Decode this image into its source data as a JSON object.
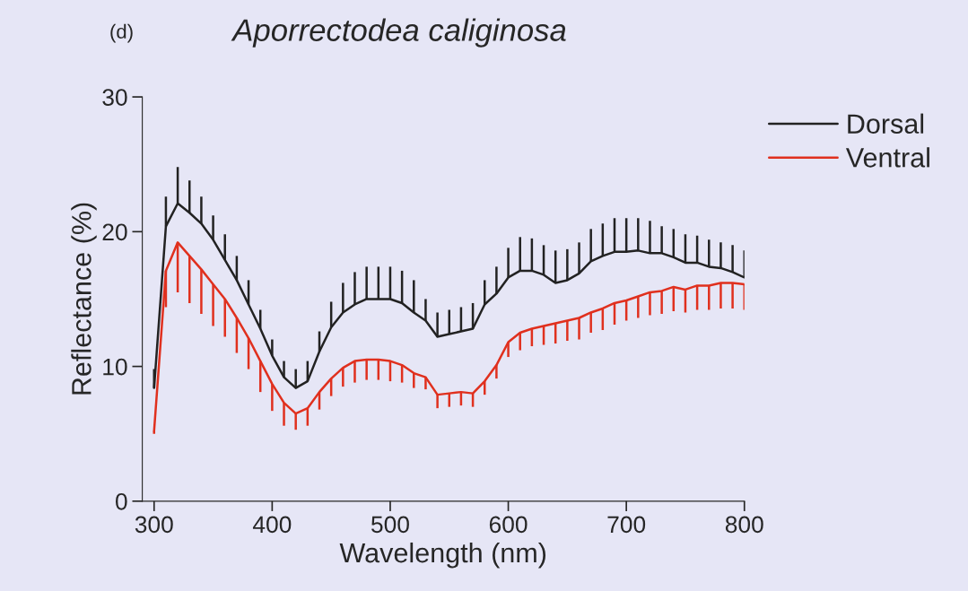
{
  "chart_data": {
    "type": "line",
    "title": "Aporrectodea caliginosa",
    "xlabel": "Wavelength (nm)",
    "ylabel": "Reflectance (%)",
    "annotations": [
      "(d)"
    ],
    "x": [
      300,
      310,
      320,
      330,
      340,
      350,
      360,
      370,
      380,
      390,
      400,
      410,
      420,
      430,
      440,
      450,
      460,
      470,
      480,
      490,
      500,
      510,
      520,
      530,
      540,
      550,
      560,
      570,
      580,
      590,
      600,
      610,
      620,
      630,
      640,
      650,
      660,
      670,
      680,
      690,
      700,
      710,
      720,
      730,
      740,
      750,
      760,
      770,
      780,
      790,
      800
    ],
    "series": [
      {
        "name": "Dorsal",
        "color": "#222222",
        "values": [
          8.4,
          20.4,
          22.1,
          21.4,
          20.6,
          19.4,
          17.9,
          16.4,
          14.6,
          12.8,
          10.8,
          9.2,
          8.4,
          8.9,
          11.1,
          12.9,
          14.0,
          14.6,
          15.0,
          15.0,
          15.0,
          14.7,
          14.0,
          13.4,
          12.2,
          12.4,
          12.6,
          12.8,
          14.6,
          15.4,
          16.6,
          17.1,
          17.1,
          16.8,
          16.2,
          16.4,
          16.9,
          17.8,
          18.2,
          18.5,
          18.5,
          18.6,
          18.4,
          18.4,
          18.1,
          17.7,
          17.7,
          17.4,
          17.3,
          17.0,
          16.6
        ],
        "errors": [
          [
            8.4,
            9.8
          ],
          [
            20.4,
            22.6
          ],
          [
            22.1,
            24.8
          ],
          [
            21.4,
            23.8
          ],
          [
            20.6,
            22.6
          ],
          [
            19.4,
            21.2
          ],
          [
            17.9,
            19.8
          ],
          [
            16.4,
            18.2
          ],
          [
            14.6,
            16.4
          ],
          [
            12.8,
            14.2
          ],
          [
            10.8,
            12.0
          ],
          [
            9.2,
            10.4
          ],
          [
            8.4,
            9.8
          ],
          [
            8.9,
            10.4
          ],
          [
            11.1,
            12.6
          ],
          [
            12.9,
            14.8
          ],
          [
            14.0,
            16.2
          ],
          [
            14.6,
            17.0
          ],
          [
            15.0,
            17.4
          ],
          [
            15.0,
            17.4
          ],
          [
            15.0,
            17.4
          ],
          [
            14.7,
            17.1
          ],
          [
            14.0,
            16.4
          ],
          [
            13.4,
            15.0
          ],
          [
            12.2,
            14.0
          ],
          [
            12.4,
            14.2
          ],
          [
            12.6,
            14.4
          ],
          [
            12.8,
            14.7
          ],
          [
            14.6,
            16.4
          ],
          [
            15.4,
            17.4
          ],
          [
            16.6,
            18.8
          ],
          [
            17.1,
            19.6
          ],
          [
            17.1,
            19.5
          ],
          [
            16.8,
            19.0
          ],
          [
            16.2,
            18.6
          ],
          [
            16.4,
            18.7
          ],
          [
            16.9,
            19.2
          ],
          [
            17.8,
            20.2
          ],
          [
            18.2,
            20.6
          ],
          [
            18.5,
            21.0
          ],
          [
            18.5,
            21.0
          ],
          [
            18.6,
            21.0
          ],
          [
            18.4,
            20.8
          ],
          [
            18.4,
            20.4
          ],
          [
            18.1,
            20.2
          ],
          [
            17.7,
            19.8
          ],
          [
            17.7,
            19.7
          ],
          [
            17.4,
            19.4
          ],
          [
            17.3,
            19.2
          ],
          [
            17.0,
            19.0
          ],
          [
            16.6,
            18.6
          ]
        ]
      },
      {
        "name": "Ventral",
        "color": "#e0301e",
        "values": [
          5.2,
          17.1,
          19.2,
          18.2,
          17.2,
          16.1,
          15.0,
          13.6,
          12.1,
          10.4,
          8.7,
          7.3,
          6.5,
          6.9,
          8.1,
          9.1,
          9.9,
          10.4,
          10.5,
          10.5,
          10.4,
          10.1,
          9.5,
          9.2,
          7.9,
          8.0,
          8.1,
          8.0,
          8.9,
          10.1,
          11.8,
          12.5,
          12.8,
          13.0,
          13.2,
          13.4,
          13.6,
          14.0,
          14.3,
          14.7,
          14.9,
          15.2,
          15.5,
          15.6,
          15.9,
          15.7,
          16.0,
          16.0,
          16.2,
          16.2,
          16.1
        ],
        "errors": [
          [
            5.0,
            5.2
          ],
          [
            14.4,
            17.1
          ],
          [
            15.5,
            19.2
          ],
          [
            14.7,
            18.2
          ],
          [
            13.9,
            17.2
          ],
          [
            13.0,
            16.1
          ],
          [
            12.2,
            15.0
          ],
          [
            11.0,
            13.6
          ],
          [
            9.8,
            12.1
          ],
          [
            8.1,
            10.4
          ],
          [
            6.7,
            8.7
          ],
          [
            5.6,
            7.3
          ],
          [
            5.3,
            6.5
          ],
          [
            5.6,
            6.9
          ],
          [
            6.8,
            8.1
          ],
          [
            7.8,
            9.1
          ],
          [
            8.5,
            9.9
          ],
          [
            8.8,
            10.4
          ],
          [
            9.0,
            10.5
          ],
          [
            9.0,
            10.5
          ],
          [
            8.9,
            10.4
          ],
          [
            8.8,
            10.1
          ],
          [
            8.4,
            9.5
          ],
          [
            8.3,
            9.2
          ],
          [
            6.9,
            7.9
          ],
          [
            7.0,
            8.0
          ],
          [
            7.1,
            8.1
          ],
          [
            7.0,
            8.0
          ],
          [
            7.9,
            8.9
          ],
          [
            9.1,
            10.1
          ],
          [
            10.7,
            11.8
          ],
          [
            11.2,
            12.5
          ],
          [
            11.5,
            12.8
          ],
          [
            11.6,
            13.0
          ],
          [
            11.7,
            13.2
          ],
          [
            11.9,
            13.4
          ],
          [
            12.0,
            13.6
          ],
          [
            12.5,
            14.0
          ],
          [
            12.7,
            14.3
          ],
          [
            13.1,
            14.7
          ],
          [
            13.4,
            14.9
          ],
          [
            13.6,
            15.2
          ],
          [
            13.8,
            15.5
          ],
          [
            13.9,
            15.6
          ],
          [
            14.1,
            15.9
          ],
          [
            14.0,
            15.7
          ],
          [
            14.2,
            16.0
          ],
          [
            14.2,
            16.0
          ],
          [
            14.3,
            16.2
          ],
          [
            14.3,
            16.2
          ],
          [
            14.2,
            16.1
          ]
        ]
      }
    ],
    "xlim": [
      290,
      800
    ],
    "ylim": [
      0,
      30
    ],
    "xticks": [
      300,
      400,
      500,
      600,
      700,
      800
    ],
    "yticks": [
      0,
      10,
      20,
      30
    ],
    "grid": false,
    "legend": "top right",
    "marker": "none",
    "line_style": "solid"
  }
}
